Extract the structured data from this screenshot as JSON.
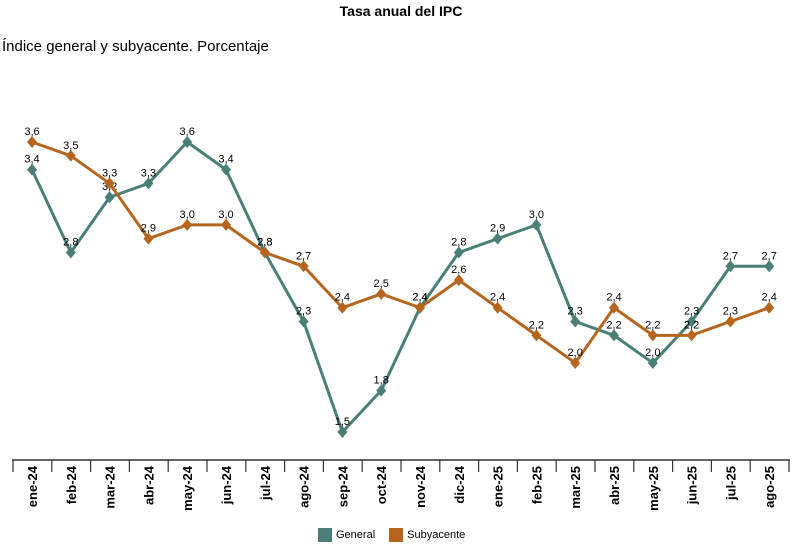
{
  "chart_data": {
    "type": "line",
    "title": "Tasa anual del IPC",
    "subtitle": "Índice general y subyacente. Porcentaje",
    "categories": [
      "ene-24",
      "feb-24",
      "mar-24",
      "abr-24",
      "may-24",
      "jun-24",
      "jul-24",
      "ago-24",
      "sep-24",
      "oct-24",
      "nov-24",
      "dic-24",
      "ene-25",
      "feb-25",
      "mar-25",
      "abr-25",
      "may-25",
      "jun-25",
      "jul-25",
      "ago-25"
    ],
    "series": [
      {
        "name": "General",
        "color": "#4a7f78",
        "values": [
          3.4,
          2.8,
          3.2,
          3.3,
          3.6,
          3.4,
          2.8,
          2.3,
          1.5,
          1.8,
          2.4,
          2.8,
          2.9,
          3.0,
          2.3,
          2.2,
          2.0,
          2.3,
          2.7,
          2.7
        ],
        "labels": [
          "3,4",
          "2,8",
          "3,2",
          "3,3",
          "3,6",
          "3,4",
          "2,8",
          "2,3",
          "1,5",
          "1,8",
          "2,4",
          "2,8",
          "2,9",
          "3,0",
          "2,3",
          "2,2",
          "2,0",
          "2,3",
          "2,7",
          "2,7"
        ]
      },
      {
        "name": "Subyacente",
        "color": "#b5651d",
        "values": [
          3.6,
          3.5,
          3.3,
          2.9,
          3.0,
          3.0,
          2.8,
          2.7,
          2.4,
          2.5,
          2.4,
          2.6,
          2.4,
          2.2,
          2.0,
          2.4,
          2.2,
          2.2,
          2.3,
          2.4
        ],
        "labels": [
          "3,6",
          "3,5",
          "3,3",
          "2,9",
          "3,0",
          "3,0",
          "2,8",
          "2,7",
          "2,4",
          "2,5",
          "2,4",
          "2,6",
          "2,4",
          "2,2",
          "2,0",
          "2,4",
          "2,2",
          "2,2",
          "2,3",
          "2,4"
        ]
      }
    ],
    "ylim": [
      1.3,
      3.8
    ],
    "grid": false,
    "legend_position": "bottom"
  }
}
